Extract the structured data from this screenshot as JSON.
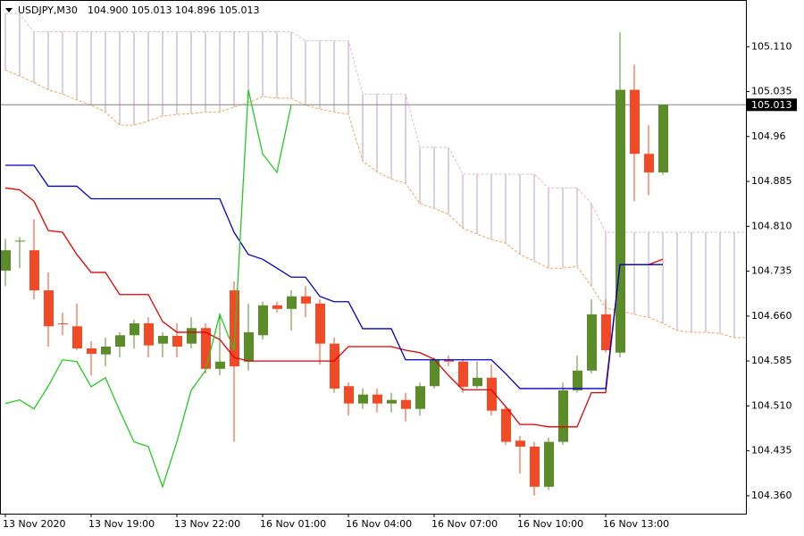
{
  "chart_data": {
    "type": "candlestick",
    "title": "USDJPY,M30",
    "subtitle": "104.900 105.013 104.896 105.013",
    "categories": [
      "13 Nov 2020",
      null,
      null,
      null,
      null,
      null,
      "13 Nov 19:00",
      null,
      null,
      null,
      null,
      null,
      "13 Nov 22:00",
      null,
      null,
      null,
      null,
      null,
      "16 Nov 01:00",
      null,
      null,
      null,
      null,
      null,
      "16 Nov 04:00",
      null,
      null,
      null,
      null,
      null,
      "16 Nov 07:00",
      null,
      null,
      null,
      null,
      null,
      "16 Nov 10:00",
      null,
      null,
      null,
      null,
      null,
      "16 Nov 13:00",
      null,
      null,
      null,
      null,
      null,
      null,
      null,
      null,
      null,
      null
    ],
    "open": [
      104.736,
      104.785,
      104.77,
      104.703,
      104.648,
      104.643,
      104.606,
      104.596,
      104.609,
      104.628,
      104.648,
      104.614,
      104.627,
      104.614,
      104.64,
      104.572,
      104.703,
      104.584,
      104.628,
      104.678,
      104.672,
      104.693,
      104.681,
      104.614,
      104.543,
      104.514,
      104.529,
      104.514,
      104.52,
      104.505,
      104.543,
      104.587,
      104.584,
      104.543,
      104.557,
      104.505,
      104.452,
      104.442,
      104.375,
      104.45,
      104.536,
      104.569,
      104.663,
      104.599,
      105.038,
      104.931,
      104.9,
      null,
      null,
      null,
      null,
      null,
      null
    ],
    "high": [
      104.789,
      104.792,
      104.822,
      104.733,
      104.666,
      104.681,
      104.618,
      104.624,
      104.633,
      104.654,
      104.658,
      104.633,
      104.648,
      104.658,
      104.648,
      104.663,
      104.718,
      104.681,
      104.684,
      104.684,
      104.703,
      104.71,
      104.688,
      104.624,
      104.549,
      104.539,
      104.539,
      104.532,
      104.532,
      104.549,
      104.591,
      104.594,
      104.588,
      104.584,
      104.579,
      104.509,
      104.46,
      104.45,
      104.457,
      104.549,
      104.594,
      104.688,
      104.688,
      105.134,
      105.08,
      104.979,
      105.013,
      null,
      null,
      null,
      null,
      null,
      null
    ],
    "low": [
      104.71,
      104.74,
      104.688,
      104.609,
      104.628,
      104.603,
      104.561,
      104.576,
      104.591,
      104.606,
      104.591,
      104.591,
      104.591,
      104.606,
      104.564,
      104.561,
      104.45,
      104.569,
      104.621,
      104.666,
      104.636,
      104.658,
      104.579,
      104.532,
      104.494,
      104.505,
      104.499,
      104.499,
      104.484,
      104.494,
      104.539,
      104.576,
      104.532,
      104.539,
      104.494,
      104.445,
      104.397,
      104.36,
      104.37,
      104.445,
      104.532,
      104.564,
      104.599,
      104.591,
      104.852,
      104.862,
      104.896,
      null,
      null,
      null,
      null,
      null,
      null
    ],
    "close": [
      104.77,
      104.786,
      104.703,
      104.643,
      104.647,
      104.606,
      104.597,
      104.609,
      104.628,
      104.648,
      104.611,
      104.627,
      104.609,
      104.64,
      104.572,
      104.584,
      104.576,
      104.633,
      104.678,
      104.672,
      104.693,
      104.681,
      104.614,
      104.539,
      104.514,
      104.529,
      104.514,
      104.52,
      104.505,
      104.543,
      104.587,
      104.584,
      104.542,
      104.557,
      104.502,
      104.45,
      104.442,
      104.375,
      104.45,
      104.536,
      104.569,
      104.663,
      104.603,
      105.038,
      104.931,
      104.9,
      105.013,
      null,
      null,
      null,
      null,
      null,
      null
    ],
    "up_color": "#5b8c2a",
    "down_color": "#f24a26",
    "cloud": {
      "span_a": {
        "color": "#f4a460",
        "values": [
          105.071,
          105.061,
          105.05,
          105.038,
          105.031,
          105.021,
          105.012,
          105.001,
          104.979,
          104.979,
          104.986,
          104.994,
          104.997,
          104.998,
          105.001,
          105.001,
          105.009,
          105.016,
          105.027,
          105.024,
          105.024,
          105.012,
          105.006,
          105.001,
          104.997,
          104.919,
          104.901,
          104.889,
          104.882,
          104.848,
          104.84,
          104.83,
          104.807,
          104.797,
          104.788,
          104.782,
          104.763,
          104.752,
          104.74,
          104.74,
          104.743,
          104.71,
          104.673,
          104.669,
          104.663,
          104.658,
          104.648,
          104.636,
          104.633,
          104.633,
          104.631,
          104.624,
          104.624
        ]
      },
      "span_b": {
        "color": "#d8bfd8",
        "values": [
          105.165,
          105.165,
          105.135,
          105.135,
          105.135,
          105.135,
          105.135,
          105.135,
          105.135,
          105.135,
          105.135,
          105.135,
          105.135,
          105.135,
          105.135,
          105.135,
          105.135,
          105.135,
          105.135,
          105.135,
          105.135,
          105.12,
          105.12,
          105.12,
          105.12,
          105.031,
          105.031,
          105.031,
          105.031,
          104.942,
          104.942,
          104.942,
          104.897,
          104.897,
          104.897,
          104.897,
          104.897,
          104.897,
          104.874,
          104.874,
          104.874,
          104.848,
          104.8,
          104.8,
          104.8,
          104.8,
          104.8,
          104.8,
          104.8,
          104.8,
          104.8,
          104.8,
          104.8
        ]
      },
      "hatch_color": "#c9afc9"
    },
    "lines": [
      {
        "color": "#e00000",
        "values": [
          104.874,
          104.871,
          104.852,
          104.803,
          104.8,
          104.763,
          104.733,
          104.733,
          104.696,
          104.696,
          104.696,
          104.651,
          104.633,
          104.633,
          104.633,
          104.621,
          104.591,
          104.585,
          104.585,
          104.585,
          104.585,
          104.585,
          104.585,
          104.585,
          104.609,
          104.609,
          104.609,
          104.609,
          104.603,
          104.599,
          104.588,
          104.561,
          104.537,
          104.537,
          104.537,
          104.509,
          104.479,
          104.479,
          104.475,
          104.475,
          104.475,
          104.532,
          104.532,
          104.746,
          104.746,
          104.746,
          104.755,
          null,
          null,
          null,
          null,
          null,
          null
        ]
      },
      {
        "color": "#0000c8",
        "values": [
          104.912,
          104.912,
          104.912,
          104.877,
          104.877,
          104.877,
          104.856,
          104.856,
          104.856,
          104.856,
          104.856,
          104.856,
          104.856,
          104.856,
          104.856,
          104.856,
          104.8,
          104.763,
          104.755,
          104.74,
          104.725,
          104.725,
          104.693,
          104.684,
          104.684,
          104.639,
          104.639,
          104.639,
          104.587,
          104.587,
          104.587,
          104.587,
          104.587,
          104.587,
          104.587,
          104.564,
          104.539,
          104.539,
          104.539,
          104.539,
          104.539,
          104.539,
          104.539,
          104.746,
          104.746,
          104.746,
          104.746,
          null,
          null,
          null,
          null,
          null,
          null
        ]
      },
      {
        "color": "#22cc22",
        "values": [
          104.514,
          104.52,
          104.505,
          104.543,
          104.587,
          104.584,
          104.542,
          104.557,
          104.502,
          104.45,
          104.442,
          104.375,
          104.45,
          104.536,
          104.569,
          104.663,
          104.603,
          105.038,
          104.931,
          104.9,
          105.013,
          null,
          null,
          null,
          null,
          null,
          null,
          null,
          null,
          null,
          null,
          null,
          null,
          null,
          null,
          null,
          null,
          null,
          null,
          null,
          null,
          null,
          null,
          null,
          null,
          null,
          null,
          null,
          null,
          null,
          null,
          null,
          null
        ]
      }
    ],
    "bid": 105.013,
    "ylim": [
      104.33,
      105.188
    ],
    "yticks": [
      {
        "value": 105.11,
        "label": "105.110"
      },
      105.035,
      104.96,
      104.885,
      {
        "value": 104.81,
        "label": "104.810"
      },
      104.735,
      {
        "value": 104.66,
        "label": "104.660"
      },
      104.585,
      {
        "value": 104.51,
        "label": "104.510"
      },
      104.435,
      {
        "value": 104.36,
        "label": "104.360"
      }
    ]
  }
}
